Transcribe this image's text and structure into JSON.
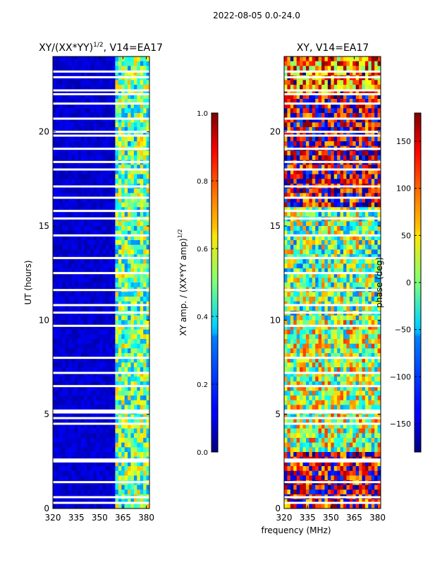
{
  "figure_title": "2022-08-05 0.0-24.0",
  "shared_xlabel": "frequency (MHz)",
  "chart_data": [
    {
      "type": "heatmap",
      "title_main": "XY/(XX*YY)",
      "title_sup": "1/2",
      "title_rest": ", V14=EA17",
      "xlabel": "",
      "ylabel": "UT (hours)",
      "xlim": [
        320,
        382
      ],
      "ylim": [
        0,
        24
      ],
      "xticks": [
        320,
        335,
        350,
        365,
        380
      ],
      "yticks": [
        0,
        5,
        10,
        15,
        20
      ],
      "colormap": "jet",
      "colorbar": {
        "label_main": "XY amp. / (XX*YY amp)",
        "label_sup": "1/2",
        "range": [
          0.0,
          1.0
        ],
        "ticks": [
          "0.0",
          "0.2",
          "0.4",
          "0.6",
          "0.8",
          "1.0"
        ],
        "tick_values": [
          0.0,
          0.2,
          0.4,
          0.6,
          0.8,
          1.0
        ]
      },
      "data_description_bands": [
        {
          "freq_range": [
            320,
            360
          ],
          "typical_value": 0.05
        },
        {
          "freq_range": [
            360,
            382
          ],
          "typical_value": 0.45
        }
      ],
      "flagged_hours": [
        0.3,
        0.6,
        1.4,
        2.5,
        2.6,
        4.5,
        4.8,
        5.1,
        5.2,
        6.5,
        7.2,
        8.0,
        9.7,
        10.4,
        10.8,
        11.6,
        12.5,
        13.3,
        14.5,
        15.4,
        15.8,
        16.5,
        17.1,
        18.0,
        18.4,
        19.1,
        19.8,
        20.0,
        20.7,
        21.5,
        22.0,
        22.2,
        22.9,
        23.2
      ]
    },
    {
      "type": "heatmap",
      "title_main": "XY, V14=EA17",
      "title_sup": "",
      "title_rest": "",
      "xlabel": "frequency (MHz)",
      "ylabel": "",
      "xlim": [
        320,
        382
      ],
      "ylim": [
        0,
        24
      ],
      "xticks": [
        320,
        335,
        350,
        365,
        380
      ],
      "yticks": [
        0,
        5,
        10,
        15,
        20
      ],
      "colormap": "jet",
      "colorbar": {
        "label_main": "phase (deg)",
        "label_sup": "",
        "range": [
          -180,
          180
        ],
        "ticks": [
          "−150",
          "−100",
          "−50",
          "0",
          "50",
          "100",
          "150"
        ],
        "tick_values": [
          -150,
          -100,
          -50,
          0,
          50,
          100,
          150
        ]
      },
      "data_description_bands": [
        {
          "hour_range": [
            0,
            3
          ],
          "typical_value": 150
        },
        {
          "hour_range": [
            3,
            10
          ],
          "typical_value": 20
        },
        {
          "hour_range": [
            10,
            16
          ],
          "typical_value": 0
        },
        {
          "hour_range": [
            16,
            22
          ],
          "typical_value": 160
        },
        {
          "hour_range": [
            22,
            24
          ],
          "typical_value": 90
        }
      ],
      "flagged_hours": [
        0.3,
        0.6,
        1.4,
        2.5,
        2.6,
        4.5,
        4.8,
        5.1,
        5.2,
        6.5,
        7.2,
        8.0,
        9.7,
        10.4,
        10.8,
        11.6,
        12.5,
        13.3,
        14.5,
        15.4,
        15.8,
        16.5,
        17.1,
        18.0,
        18.4,
        19.1,
        19.8,
        20.0,
        20.7,
        21.5,
        22.0,
        22.2,
        22.9,
        23.2
      ]
    }
  ]
}
